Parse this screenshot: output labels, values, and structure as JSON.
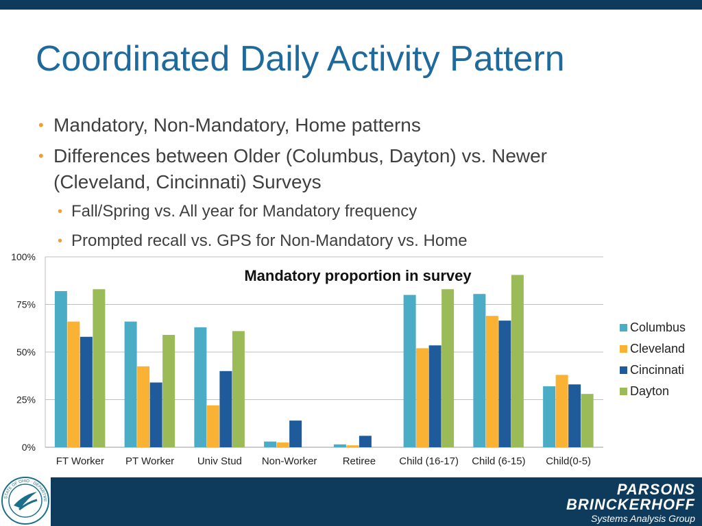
{
  "slide": {
    "title": "Coordinated Daily Activity Pattern",
    "bullets": [
      "Mandatory, Non-Mandatory, Home patterns",
      "Differences between Older (Columbus, Dayton) vs. Newer",
      "(Cleveland, Cincinnati) Surveys"
    ],
    "sub_bullets": [
      "Fall/Spring vs. All year for Mandatory frequency",
      "Prompted recall vs. GPS for Non-Mandatory vs. Home"
    ],
    "bullet_glyph": "•"
  },
  "chart_data": {
    "type": "bar",
    "title": "Mandatory proportion in survey",
    "categories": [
      "FT Worker",
      "PT Worker",
      "Univ Stud",
      "Non-Worker",
      "Retiree",
      "Child (16-17)",
      "Child (6-15)",
      "Child(0-5)"
    ],
    "series": [
      {
        "name": "Columbus",
        "color": "#4bacc6",
        "values": [
          0.82,
          0.66,
          0.63,
          0.03,
          0.015,
          0.8,
          0.805,
          0.32
        ]
      },
      {
        "name": "Cleveland",
        "color": "#f9b233",
        "values": [
          0.66,
          0.425,
          0.22,
          0.025,
          0.01,
          0.52,
          0.69,
          0.38
        ]
      },
      {
        "name": "Cincinnati",
        "color": "#1f5b9a",
        "values": [
          0.58,
          0.34,
          0.4,
          0.14,
          0.06,
          0.535,
          0.665,
          0.33
        ]
      },
      {
        "name": "Dayton",
        "color": "#9bbb59",
        "values": [
          0.83,
          0.59,
          0.61,
          0.0,
          0.0,
          0.83,
          0.905,
          0.28
        ]
      }
    ],
    "ylim": [
      0,
      1
    ],
    "yticks": [
      0,
      0.25,
      0.5,
      0.75,
      1
    ],
    "ytick_labels": [
      "0%",
      "25%",
      "50%",
      "75%",
      "100%"
    ],
    "grid": true,
    "legend_position": "right",
    "xlabel": "",
    "ylabel": ""
  },
  "footer": {
    "odot_logo_text": "STATE OF OHIO · DEPARTMENT OF TRANSPORTATION",
    "company_line1": "PARSONS",
    "company_line2": "BRINCKERHOFF",
    "company_line3": "Systems Analysis Group"
  }
}
